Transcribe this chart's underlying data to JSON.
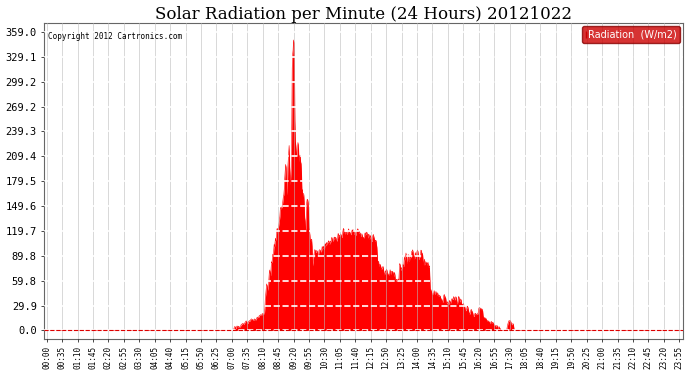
{
  "title": "Solar Radiation per Minute (24 Hours) 20121022",
  "copyright_text": "Copyright 2012 Cartronics.com",
  "legend_label": "Radiation  (W/m2)",
  "y_ticks": [
    0.0,
    29.9,
    59.8,
    89.8,
    119.7,
    149.6,
    179.5,
    209.4,
    239.3,
    269.2,
    299.2,
    329.1,
    359.0
  ],
  "y_max": 370,
  "y_min": -10,
  "background_color": "#ffffff",
  "plot_bg_color": "#ffffff",
  "grid_color": "#bbbbbb",
  "fill_color": "#ff0000",
  "dashed_line_color": "#dd0000",
  "title_fontsize": 12,
  "legend_bg": "#cc0000",
  "legend_text_color": "#ffffff",
  "tick_step_minutes": 35,
  "n_points": 1440
}
